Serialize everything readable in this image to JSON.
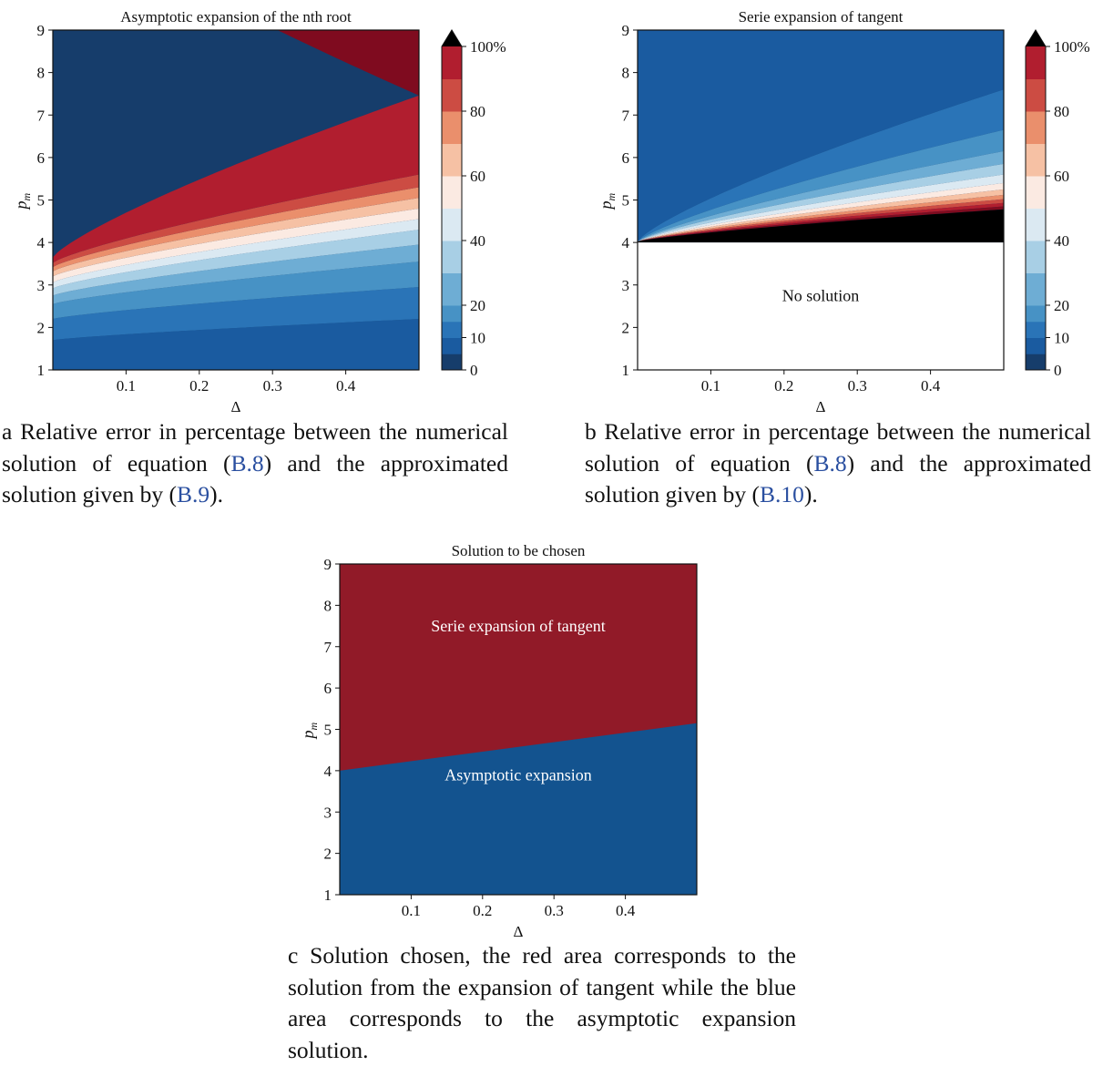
{
  "chart_data": [
    {
      "id": "a",
      "type": "contourf",
      "title": "Asymptotic expansion of the nth root",
      "xlabel": "Δ",
      "ylabel": "p",
      "ylabel_sub": "m",
      "xlim": [
        0.0,
        0.5
      ],
      "ylim": [
        1,
        9
      ],
      "xticks": [
        "0.1",
        "0.2",
        "0.3",
        "0.4"
      ],
      "yticks": [
        "1",
        "2",
        "3",
        "4",
        "5",
        "6",
        "7",
        "8",
        "9"
      ],
      "colorbar": {
        "levels": [
          0,
          5,
          10,
          15,
          20,
          30,
          40,
          50,
          60,
          70,
          80,
          90,
          100
        ],
        "tick_labels": [
          "0",
          "10",
          "20",
          "40",
          "60",
          "80",
          "100%"
        ],
        "extend": "max",
        "over_color": "#000000"
      },
      "boundaries": {
        "left": [
          1.7,
          2.2,
          2.55,
          2.75,
          2.92,
          3.06,
          3.2,
          3.32,
          3.42,
          3.52,
          3.65
        ],
        "right": [
          2.2,
          2.95,
          3.55,
          3.95,
          4.3,
          4.55,
          4.8,
          5.05,
          5.3,
          5.6,
          7.46
        ]
      }
    },
    {
      "id": "b",
      "type": "contourf",
      "title": "Serie expansion of tangent",
      "xlabel": "Δ",
      "ylabel": "p",
      "ylabel_sub": "m",
      "xlim": [
        0.0,
        0.5
      ],
      "ylim": [
        1,
        9
      ],
      "xticks": [
        "0.1",
        "0.2",
        "0.3",
        "0.4"
      ],
      "yticks": [
        "1",
        "2",
        "3",
        "4",
        "5",
        "6",
        "7",
        "8",
        "9"
      ],
      "colorbar": {
        "levels": [
          0,
          5,
          10,
          15,
          20,
          30,
          40,
          50,
          60,
          70,
          80,
          90,
          100
        ],
        "tick_labels": [
          "0",
          "10",
          "20",
          "40",
          "60",
          "80",
          "100%"
        ],
        "extend": "max",
        "over_color": "#000000"
      },
      "no_solution_below": 4,
      "no_solution_label": "No solution",
      "origin_point": [
        0.0,
        4.02
      ],
      "boundaries_right": [
        7.6,
        6.65,
        6.15,
        5.85,
        5.6,
        5.4,
        5.25,
        5.12,
        5.02,
        4.93,
        4.85,
        4.78
      ]
    },
    {
      "id": "c",
      "type": "region",
      "title": "Solution to be chosen",
      "xlabel": "Δ",
      "ylabel": "p",
      "ylabel_sub": "m",
      "xlim": [
        0.0,
        0.5
      ],
      "ylim": [
        1,
        9
      ],
      "xticks": [
        "0.1",
        "0.2",
        "0.3",
        "0.4"
      ],
      "yticks": [
        "1",
        "2",
        "3",
        "4",
        "5",
        "6",
        "7",
        "8",
        "9"
      ],
      "boundary_line": [
        [
          0.0,
          4.0
        ],
        [
          0.5,
          5.15
        ]
      ],
      "upper_region": {
        "label": "Serie expansion of tangent",
        "color": "#911a28"
      },
      "lower_region": {
        "label": "Asymptotic expansion",
        "color": "#13538f"
      }
    }
  ],
  "captions": {
    "a": {
      "prefix": "a Relative error in percentage between the numerical solution of equation (",
      "ref1": "B.8",
      "middle": ") and the approximated solution given by (",
      "ref2": "B.9",
      "suffix": ")."
    },
    "b": {
      "prefix": "b Relative error in percentage between the numerical solution of equation (",
      "ref1": "B.8",
      "middle": ") and the approximated solution given by (",
      "ref2": "B.10",
      "suffix": ")."
    },
    "c": {
      "text": "c Solution chosen, the red area corresponds to the solution from the expansion of tangent while the blue area corresponds to the asymptotic expansion solution."
    }
  },
  "colors": [
    "#163d6b",
    "#1a5ba0",
    "#2a74b7",
    "#4792c5",
    "#6eadd4",
    "#a8cfe5",
    "#dbe9f2",
    "#fbeae2",
    "#f6c1a4",
    "#ea8f6c",
    "#cc4c43",
    "#b11e2f",
    "#7f0b1f"
  ]
}
